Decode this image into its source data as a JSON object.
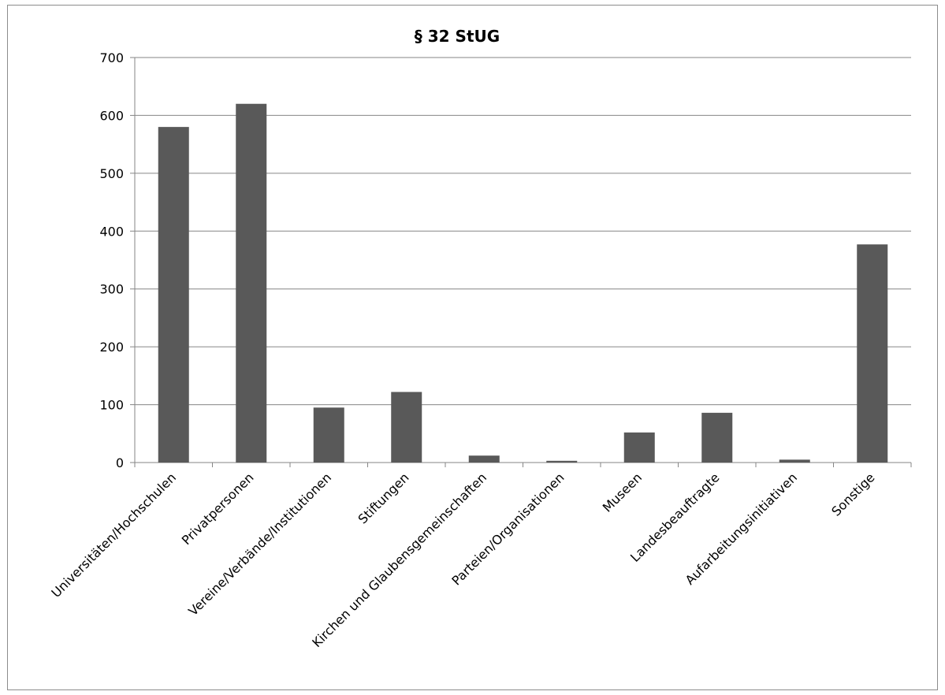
{
  "chart_data": {
    "type": "bar",
    "title": "§ 32 StUG",
    "xlabel": "",
    "ylabel": "",
    "categories": [
      "Universitäten/Hochschulen",
      "Privatpersonen",
      "Vereine/Verbände/Institutionen",
      "Stiftungen",
      "Kirchen und Glaubensgemeinschaften",
      "Parteien/Organisationen",
      "Museen",
      "Landesbeauftragte",
      "Aufarbeitungsinitiativen",
      "Sonstige"
    ],
    "values": [
      580,
      620,
      95,
      122,
      12,
      3,
      52,
      86,
      5,
      377
    ],
    "ylim": [
      0,
      700
    ],
    "yticks": [
      "0",
      "100",
      "200",
      "300",
      "400",
      "500",
      "600",
      "700"
    ],
    "grid": true,
    "legend": "none",
    "bar_color": "#595959",
    "grid_color": "#868686"
  }
}
